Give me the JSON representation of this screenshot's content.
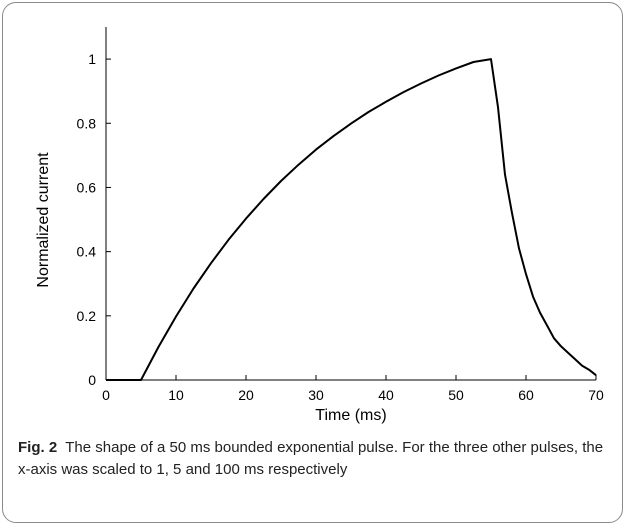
{
  "chart_data": {
    "type": "line",
    "title": "",
    "xlabel": "Time (ms)",
    "ylabel": "Normalized current",
    "xlim": [
      0,
      70
    ],
    "ylim": [
      0,
      1.1
    ],
    "xticks": [
      0,
      10,
      20,
      30,
      40,
      50,
      60,
      70
    ],
    "yticks": [
      0,
      0.2,
      0.4,
      0.6,
      0.8,
      1
    ],
    "xtick_labels": [
      "0",
      "10",
      "20",
      "30",
      "40",
      "50",
      "60",
      "70"
    ],
    "ytick_labels": [
      "0",
      "0.2",
      "0.4",
      "0.6",
      "0.8",
      "1"
    ],
    "grid": false,
    "series": [
      {
        "color": "#000000",
        "x": [
          0,
          5,
          7.5,
          10,
          12.5,
          15,
          17.5,
          20,
          22.5,
          25,
          27.5,
          30,
          32.5,
          35,
          37.5,
          40,
          42.5,
          45,
          47.5,
          50,
          52.5,
          55,
          56,
          57,
          58,
          59,
          60,
          61,
          62,
          63,
          64,
          65,
          66,
          67,
          68,
          69,
          70
        ],
        "y": [
          0,
          0,
          0.103,
          0.198,
          0.285,
          0.364,
          0.437,
          0.503,
          0.564,
          0.62,
          0.671,
          0.718,
          0.76,
          0.799,
          0.835,
          0.867,
          0.897,
          0.924,
          0.949,
          0.971,
          0.991,
          1.0,
          0.85,
          0.64,
          0.52,
          0.41,
          0.33,
          0.26,
          0.21,
          0.17,
          0.13,
          0.105,
          0.085,
          0.065,
          0.045,
          0.032,
          0.015
        ]
      }
    ]
  },
  "caption": {
    "fig_label": "Fig. 2",
    "text": "The shape of a 50 ms bounded exponential pulse. For the three other pulses, the x-axis was scaled to 1, 5 and 100 ms respectively"
  }
}
